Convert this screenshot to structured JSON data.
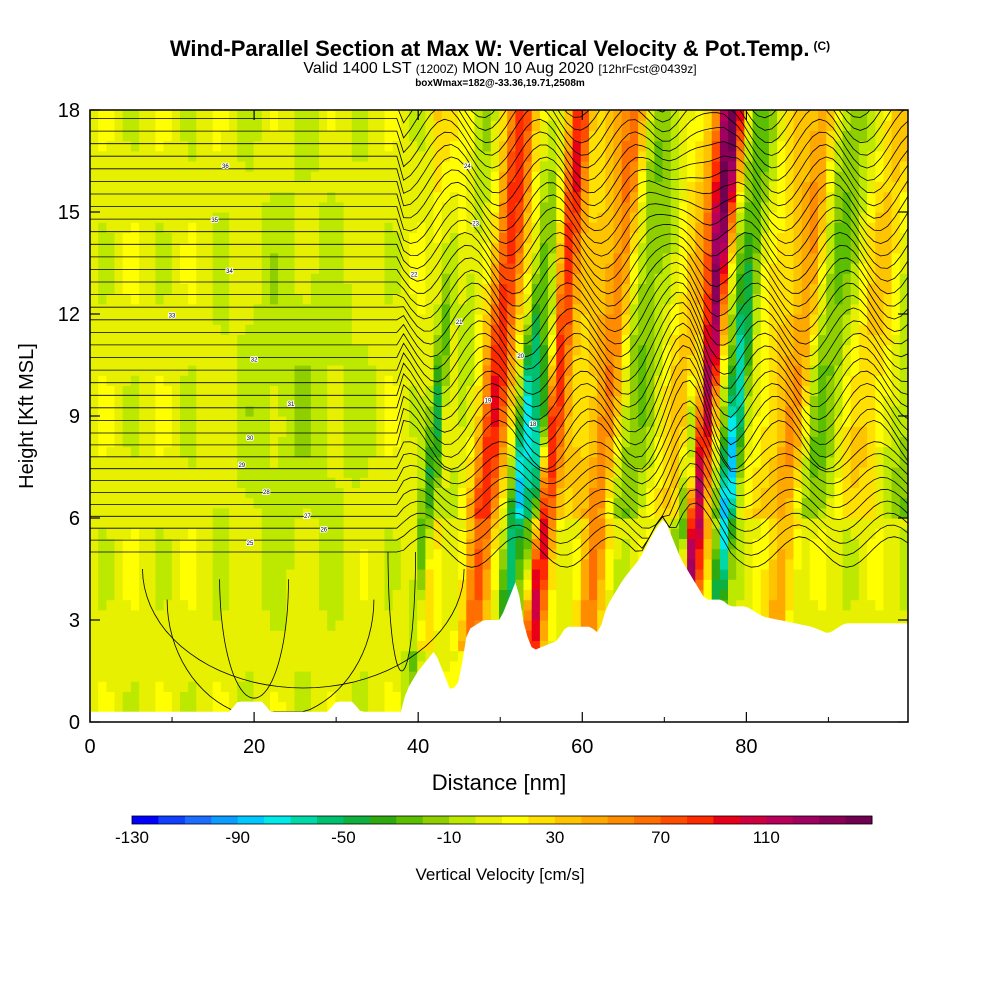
{
  "header": {
    "title": "Wind-Parallel Section at Max W: Vertical Velocity & Pot.Temp.",
    "title_units": "(C)",
    "subtitle_a": "Valid 1400 LST",
    "subtitle_b": "(1200Z)",
    "subtitle_c": "MON 10 Aug 2020",
    "subtitle_d": "[12hrFcst@0439z]",
    "subsub": "boxWmax=182@-33.36,19.71,2508m"
  },
  "chart_data": {
    "type": "heatmap",
    "title": "Wind-Parallel Section at Max W: Vertical Velocity & Pot.Temp.",
    "xlabel": "Distance [nm]",
    "ylabel": "Height [Kft MSL]",
    "xlim": [
      0,
      100
    ],
    "ylim": [
      0,
      18
    ],
    "x_ticks": [
      0,
      20,
      40,
      60,
      80
    ],
    "y_ticks": [
      0,
      3,
      6,
      9,
      12,
      15,
      18
    ],
    "colorbar": {
      "label": "Vertical Velocity [cm/s]",
      "min": -130,
      "max": 150,
      "step": 10,
      "tick_values": [
        -130,
        -90,
        -50,
        -10,
        30,
        70,
        110
      ],
      "colors": [
        "#0000ff",
        "#1040ff",
        "#1a6dff",
        "#0a9cff",
        "#00c8ff",
        "#00eaea",
        "#00d8a8",
        "#00c070",
        "#10b040",
        "#2eaa10",
        "#5cbe00",
        "#8fcf00",
        "#bde800",
        "#e6f000",
        "#ffff00",
        "#ffe000",
        "#ffc400",
        "#ffa800",
        "#ff8c00",
        "#ff6e00",
        "#ff4c00",
        "#ff2a00",
        "#e80018",
        "#d00040",
        "#b8005a",
        "#a00060",
        "#8a0058",
        "#700050"
      ]
    },
    "updraft_cores": [
      {
        "x_nm": 41.5,
        "peak_cms": 40
      },
      {
        "x_nm": 48,
        "peak_cms": 60
      },
      {
        "x_nm": 55,
        "peak_cms": 110
      },
      {
        "x_nm": 62,
        "peak_cms": 50
      },
      {
        "x_nm": 73.5,
        "peak_cms": 140
      },
      {
        "x_nm": 85,
        "peak_cms": 40
      }
    ],
    "downdraft_cores": [
      {
        "x_nm": 41,
        "peak_cms": -80
      },
      {
        "x_nm": 52,
        "peak_cms": -70
      },
      {
        "x_nm": 54,
        "peak_cms": -100
      },
      {
        "x_nm": 72.5,
        "peak_cms": -120
      },
      {
        "x_nm": 77.5,
        "peak_cms": -80
      }
    ],
    "isentrope_labels": [
      "36",
      "35",
      "34",
      "33",
      "32",
      "31",
      "30",
      "29",
      "28",
      "27",
      "26",
      "25",
      "24",
      "23",
      "22",
      "21",
      "20",
      "19",
      "18"
    ]
  }
}
